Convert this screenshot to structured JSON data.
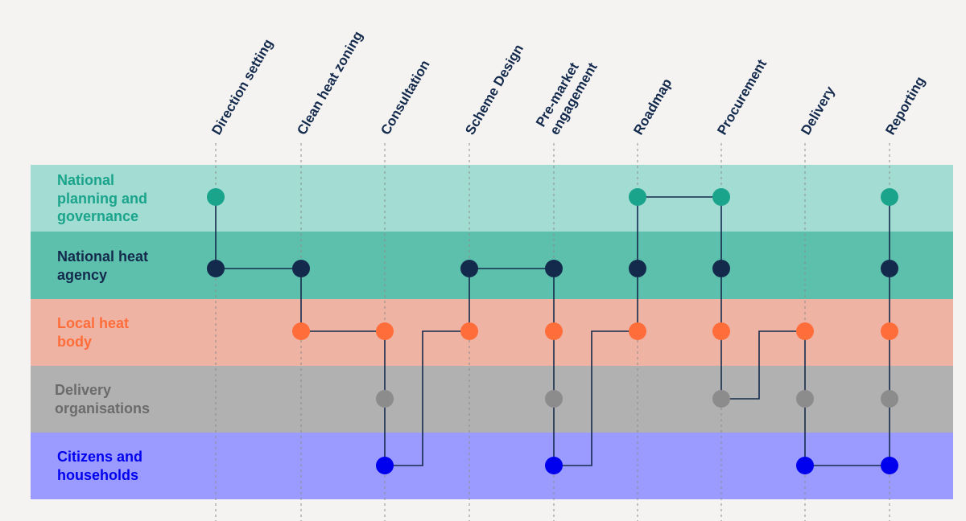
{
  "stages": [
    {
      "id": "direction",
      "lines": [
        "Direction setting"
      ]
    },
    {
      "id": "zoning",
      "lines": [
        "Clean heat zoning"
      ]
    },
    {
      "id": "consultation",
      "lines": [
        "Consultation"
      ]
    },
    {
      "id": "scheme",
      "lines": [
        "Scheme Design"
      ]
    },
    {
      "id": "premarket",
      "lines": [
        "Pre-market",
        "engagement"
      ]
    },
    {
      "id": "roadmap",
      "lines": [
        "Roadmap"
      ]
    },
    {
      "id": "procurement",
      "lines": [
        "Procurement"
      ]
    },
    {
      "id": "delivery",
      "lines": [
        "Delivery"
      ]
    },
    {
      "id": "reporting",
      "lines": [
        "Reporting"
      ]
    }
  ],
  "lanes": [
    {
      "id": "national-planning",
      "lines": [
        "National",
        "planning and",
        "governance"
      ],
      "bg": "#a3dcd2",
      "text_color": "#1aa48c",
      "dot_color": "#1aa48c"
    },
    {
      "id": "national-heat-agency",
      "lines": [
        "National heat",
        "agency"
      ],
      "bg": "#5cc0ad",
      "text_color": "#142a4d",
      "dot_color": "#142a4d"
    },
    {
      "id": "local-heat-body",
      "lines": [
        "Local heat",
        "body"
      ],
      "bg": "#efb3a4",
      "text_color": "#ff6d3a",
      "dot_color": "#ff6d3a"
    },
    {
      "id": "delivery-organisations",
      "lines": [
        "Delivery",
        "organisations"
      ],
      "bg": "#b1b1b1",
      "text_color": "#6b6b6b",
      "dot_color": "#8c8c8c"
    },
    {
      "id": "citizens",
      "lines": [
        "Citizens and",
        "households"
      ],
      "bg": "#9b9bff",
      "text_color": "#0000ee",
      "dot_color": "#0000ee"
    }
  ],
  "nodes": [
    {
      "stage": 0,
      "lane": 0
    },
    {
      "stage": 0,
      "lane": 1
    },
    {
      "stage": 1,
      "lane": 1
    },
    {
      "stage": 1,
      "lane": 2
    },
    {
      "stage": 2,
      "lane": 2
    },
    {
      "stage": 2,
      "lane": 3
    },
    {
      "stage": 2,
      "lane": 4
    },
    {
      "stage": 3,
      "lane": 1
    },
    {
      "stage": 3,
      "lane": 2
    },
    {
      "stage": 4,
      "lane": 1
    },
    {
      "stage": 4,
      "lane": 2
    },
    {
      "stage": 4,
      "lane": 3
    },
    {
      "stage": 4,
      "lane": 4
    },
    {
      "stage": 5,
      "lane": 0
    },
    {
      "stage": 5,
      "lane": 1
    },
    {
      "stage": 5,
      "lane": 2
    },
    {
      "stage": 6,
      "lane": 0
    },
    {
      "stage": 6,
      "lane": 1
    },
    {
      "stage": 6,
      "lane": 2
    },
    {
      "stage": 6,
      "lane": 3
    },
    {
      "stage": 7,
      "lane": 2
    },
    {
      "stage": 7,
      "lane": 3
    },
    {
      "stage": 7,
      "lane": 4
    },
    {
      "stage": 8,
      "lane": 0
    },
    {
      "stage": 8,
      "lane": 1
    },
    {
      "stage": 8,
      "lane": 2
    },
    {
      "stage": 8,
      "lane": 3
    },
    {
      "stage": 8,
      "lane": 4
    }
  ],
  "connections": [
    {
      "from": {
        "stage": 0,
        "lane": 0
      },
      "to": {
        "stage": 0,
        "lane": 1
      }
    },
    {
      "from": {
        "stage": 0,
        "lane": 1
      },
      "to": {
        "stage": 1,
        "lane": 1
      }
    },
    {
      "from": {
        "stage": 1,
        "lane": 1
      },
      "to": {
        "stage": 1,
        "lane": 2
      }
    },
    {
      "from": {
        "stage": 1,
        "lane": 2
      },
      "to": {
        "stage": 2,
        "lane": 2
      }
    },
    {
      "from": {
        "stage": 2,
        "lane": 2
      },
      "to": {
        "stage": 2,
        "lane": 4
      }
    },
    {
      "from": {
        "stage": 2,
        "lane": 4
      },
      "to": {
        "stage": 3,
        "lane": 2
      }
    },
    {
      "from": {
        "stage": 3,
        "lane": 2
      },
      "to": {
        "stage": 3,
        "lane": 1
      }
    },
    {
      "from": {
        "stage": 3,
        "lane": 1
      },
      "to": {
        "stage": 4,
        "lane": 1
      }
    },
    {
      "from": {
        "stage": 4,
        "lane": 1
      },
      "to": {
        "stage": 4,
        "lane": 4
      }
    },
    {
      "from": {
        "stage": 4,
        "lane": 4
      },
      "to": {
        "stage": 5,
        "lane": 2
      }
    },
    {
      "from": {
        "stage": 5,
        "lane": 2
      },
      "to": {
        "stage": 5,
        "lane": 0
      }
    },
    {
      "from": {
        "stage": 5,
        "lane": 0
      },
      "to": {
        "stage": 6,
        "lane": 0
      }
    },
    {
      "from": {
        "stage": 6,
        "lane": 0
      },
      "to": {
        "stage": 6,
        "lane": 3
      }
    },
    {
      "from": {
        "stage": 6,
        "lane": 3
      },
      "to": {
        "stage": 7,
        "lane": 2
      }
    },
    {
      "from": {
        "stage": 7,
        "lane": 2
      },
      "to": {
        "stage": 7,
        "lane": 4
      }
    },
    {
      "from": {
        "stage": 7,
        "lane": 4
      },
      "to": {
        "stage": 8,
        "lane": 4
      }
    },
    {
      "from": {
        "stage": 8,
        "lane": 4
      },
      "to": {
        "stage": 8,
        "lane": 0
      }
    }
  ],
  "colors": {
    "background": "#f4f3f1",
    "connector": "#142a4d",
    "guide": "#8c8c8c",
    "stage_text": "#142a4d"
  }
}
